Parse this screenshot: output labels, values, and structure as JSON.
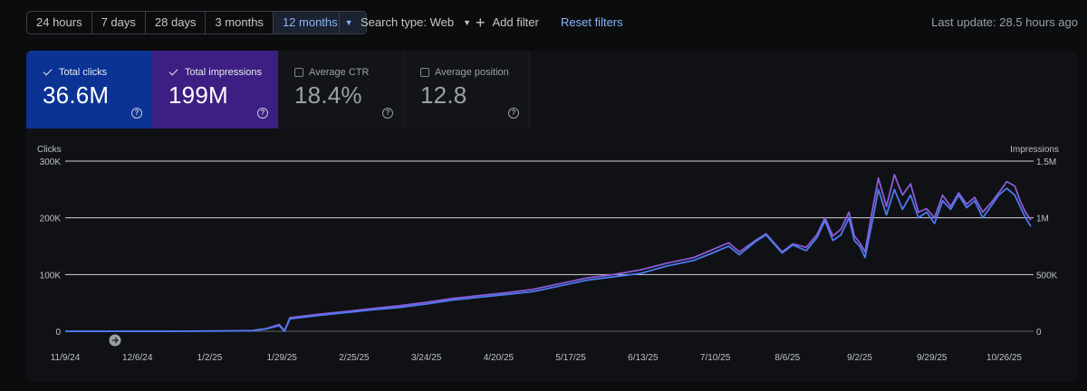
{
  "toolbar": {
    "ranges": [
      "24 hours",
      "7 days",
      "28 days",
      "3 months"
    ],
    "selected_range": "12 months",
    "search_type": "Search type: Web",
    "add_filter": "Add filter",
    "reset_filters": "Reset filters",
    "last_update": "Last update: 28.5 hours ago"
  },
  "metrics": {
    "clicks": {
      "label": "Total clicks",
      "value": "36.6M",
      "checked": true
    },
    "impressions": {
      "label": "Total impressions",
      "value": "199M",
      "checked": true
    },
    "ctr": {
      "label": "Average CTR",
      "value": "18.4%",
      "checked": false
    },
    "position": {
      "label": "Average position",
      "value": "12.8",
      "checked": false
    }
  },
  "colors": {
    "clicks": "#4a7bf0",
    "impressions": "#8b5bd9",
    "accent": "#8ab4f8"
  },
  "chart_data": {
    "type": "line",
    "left_axis_label": "Clicks",
    "right_axis_label": "Impressions",
    "left_ticks": [
      "0",
      "100K",
      "200K",
      "300K"
    ],
    "right_ticks": [
      "0",
      "500K",
      "1M",
      "1.5M"
    ],
    "ylim_left": [
      0,
      300000
    ],
    "ylim_right": [
      0,
      1500000
    ],
    "grid": true,
    "x_tick_labels": [
      "11/9/24",
      "12/6/24",
      "1/2/25",
      "1/29/25",
      "2/25/25",
      "3/24/25",
      "4/20/25",
      "5/17/25",
      "6/13/25",
      "7/10/25",
      "8/6/25",
      "9/2/25",
      "9/29/25",
      "10/26/25"
    ],
    "x_start": "11/9/24",
    "series": [
      {
        "name": "Clicks",
        "axis": "left",
        "points": [
          [
            0,
            0
          ],
          [
            20,
            0
          ],
          [
            40,
            0
          ],
          [
            60,
            500
          ],
          [
            70,
            1000
          ],
          [
            75,
            4000
          ],
          [
            80,
            10000
          ],
          [
            82,
            0
          ],
          [
            84,
            22000
          ],
          [
            95,
            28000
          ],
          [
            105,
            33000
          ],
          [
            115,
            38000
          ],
          [
            125,
            42000
          ],
          [
            135,
            48000
          ],
          [
            145,
            55000
          ],
          [
            155,
            60000
          ],
          [
            165,
            65000
          ],
          [
            175,
            70000
          ],
          [
            185,
            80000
          ],
          [
            195,
            90000
          ],
          [
            205,
            96000
          ],
          [
            215,
            102000
          ],
          [
            225,
            115000
          ],
          [
            235,
            125000
          ],
          [
            242,
            138000
          ],
          [
            248,
            150000
          ],
          [
            252,
            135000
          ],
          [
            258,
            158000
          ],
          [
            262,
            170000
          ],
          [
            268,
            138000
          ],
          [
            272,
            152000
          ],
          [
            277,
            142000
          ],
          [
            281,
            165000
          ],
          [
            284,
            195000
          ],
          [
            287,
            160000
          ],
          [
            290,
            170000
          ],
          [
            293,
            200000
          ],
          [
            295,
            160000
          ],
          [
            297,
            150000
          ],
          [
            299,
            130000
          ],
          [
            302,
            200000
          ],
          [
            304,
            250000
          ],
          [
            307,
            205000
          ],
          [
            310,
            250000
          ],
          [
            313,
            215000
          ],
          [
            316,
            240000
          ],
          [
            319,
            200000
          ],
          [
            322,
            210000
          ],
          [
            325,
            190000
          ],
          [
            328,
            230000
          ],
          [
            331,
            215000
          ],
          [
            334,
            240000
          ],
          [
            337,
            218000
          ],
          [
            340,
            230000
          ],
          [
            343,
            200000
          ],
          [
            346,
            220000
          ],
          [
            349,
            240000
          ],
          [
            352,
            252000
          ],
          [
            355,
            240000
          ],
          [
            357,
            220000
          ],
          [
            359,
            200000
          ],
          [
            361,
            185000
          ]
        ]
      },
      {
        "name": "Impressions",
        "axis": "right",
        "points": [
          [
            0,
            0
          ],
          [
            20,
            0
          ],
          [
            40,
            0
          ],
          [
            60,
            3000
          ],
          [
            70,
            6000
          ],
          [
            75,
            22000
          ],
          [
            80,
            60000
          ],
          [
            82,
            5000
          ],
          [
            84,
            120000
          ],
          [
            95,
            150000
          ],
          [
            105,
            175000
          ],
          [
            115,
            200000
          ],
          [
            125,
            225000
          ],
          [
            135,
            255000
          ],
          [
            145,
            290000
          ],
          [
            155,
            315000
          ],
          [
            165,
            340000
          ],
          [
            175,
            370000
          ],
          [
            185,
            420000
          ],
          [
            195,
            470000
          ],
          [
            205,
            500000
          ],
          [
            215,
            540000
          ],
          [
            225,
            600000
          ],
          [
            235,
            650000
          ],
          [
            242,
            720000
          ],
          [
            248,
            780000
          ],
          [
            252,
            700000
          ],
          [
            258,
            800000
          ],
          [
            262,
            860000
          ],
          [
            268,
            700000
          ],
          [
            272,
            770000
          ],
          [
            277,
            740000
          ],
          [
            281,
            850000
          ],
          [
            284,
            1000000
          ],
          [
            287,
            840000
          ],
          [
            290,
            900000
          ],
          [
            293,
            1050000
          ],
          [
            295,
            840000
          ],
          [
            297,
            780000
          ],
          [
            299,
            700000
          ],
          [
            302,
            1100000
          ],
          [
            304,
            1350000
          ],
          [
            307,
            1100000
          ],
          [
            310,
            1380000
          ],
          [
            313,
            1200000
          ],
          [
            316,
            1300000
          ],
          [
            319,
            1050000
          ],
          [
            322,
            1080000
          ],
          [
            325,
            1000000
          ],
          [
            328,
            1200000
          ],
          [
            331,
            1100000
          ],
          [
            334,
            1220000
          ],
          [
            337,
            1120000
          ],
          [
            340,
            1180000
          ],
          [
            343,
            1050000
          ],
          [
            346,
            1130000
          ],
          [
            349,
            1220000
          ],
          [
            352,
            1320000
          ],
          [
            355,
            1280000
          ],
          [
            357,
            1150000
          ],
          [
            359,
            1050000
          ],
          [
            361,
            980000
          ]
        ]
      }
    ]
  }
}
